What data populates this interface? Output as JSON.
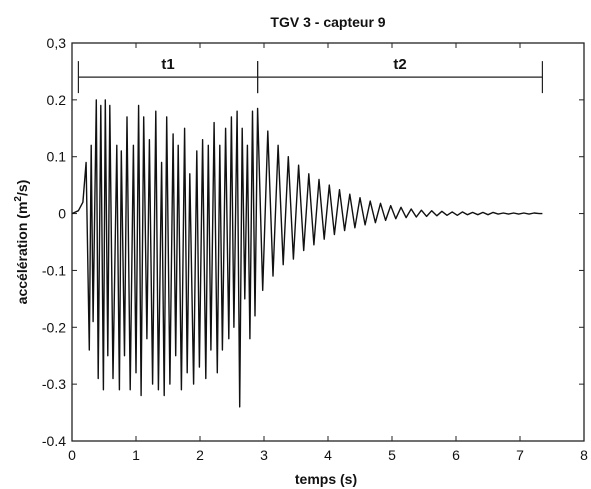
{
  "chart_data": {
    "type": "line",
    "title": "TGV 3 - capteur 9",
    "xlabel": "temps (s)",
    "ylabel_main": "accélération (m",
    "ylabel_sup": "2",
    "ylabel_tail": "/s)",
    "xlim": [
      0,
      8
    ],
    "ylim": [
      -0.4,
      0.3
    ],
    "xticks": [
      0,
      1,
      2,
      3,
      4,
      5,
      6,
      7,
      8
    ],
    "xtick_labels": [
      "0",
      "1",
      "2",
      "3",
      "4",
      "5",
      "6",
      "7",
      "8"
    ],
    "yticks": [
      0.3,
      0.2,
      0.1,
      0,
      -0.1,
      -0.2,
      -0.3,
      -0.4
    ],
    "ytick_labels": [
      "0,3",
      "0.2",
      "0.1",
      "0",
      "-0.1",
      "-0.2",
      "-0.3",
      "-0.4"
    ],
    "grid": false,
    "series": [
      {
        "color": "#111111",
        "x": [
          0,
          0.1,
          0.17,
          0.22,
          0.27,
          0.3,
          0.33,
          0.38,
          0.41,
          0.45,
          0.49,
          0.52,
          0.56,
          0.59,
          0.64,
          0.7,
          0.74,
          0.77,
          0.82,
          0.86,
          0.91,
          0.96,
          1.0,
          1.04,
          1.08,
          1.12,
          1.17,
          1.21,
          1.26,
          1.31,
          1.35,
          1.4,
          1.44,
          1.48,
          1.53,
          1.58,
          1.62,
          1.66,
          1.71,
          1.76,
          1.8,
          1.84,
          1.9,
          1.95,
          1.99,
          2.04,
          2.09,
          2.13,
          2.17,
          2.22,
          2.27,
          2.31,
          2.35,
          2.4,
          2.45,
          2.49,
          2.53,
          2.58,
          2.62,
          2.66,
          2.7,
          2.74,
          2.78,
          2.82,
          2.86,
          2.9,
          2.98,
          3.06,
          3.14,
          3.22,
          3.3,
          3.38,
          3.46,
          3.54,
          3.62,
          3.7,
          3.78,
          3.86,
          3.94,
          4.02,
          4.1,
          4.18,
          4.26,
          4.34,
          4.42,
          4.5,
          4.58,
          4.66,
          4.74,
          4.82,
          4.9,
          4.98,
          5.06,
          5.14,
          5.22,
          5.3,
          5.38,
          5.46,
          5.54,
          5.62,
          5.7,
          5.78,
          5.86,
          5.94,
          6.02,
          6.1,
          6.18,
          6.26,
          6.34,
          6.42,
          6.5,
          6.58,
          6.66,
          6.74,
          6.82,
          6.9,
          6.98,
          7.06,
          7.14,
          7.22,
          7.3,
          7.35
        ],
        "y": [
          0,
          0.005,
          0.02,
          0.09,
          -0.24,
          0.12,
          -0.19,
          0.2,
          -0.29,
          0.19,
          -0.31,
          0.2,
          -0.25,
          0.19,
          -0.29,
          0.12,
          -0.31,
          0.11,
          -0.25,
          0.17,
          -0.31,
          0.12,
          -0.28,
          0.19,
          -0.32,
          0.17,
          -0.22,
          0.13,
          -0.3,
          0.18,
          -0.31,
          0.09,
          -0.32,
          0.17,
          -0.3,
          0.14,
          -0.25,
          0.12,
          -0.31,
          0.15,
          -0.28,
          0.07,
          -0.3,
          0.11,
          -0.27,
          0.13,
          -0.29,
          0.12,
          -0.24,
          0.16,
          -0.28,
          0.12,
          -0.24,
          0.15,
          -0.22,
          0.17,
          -0.2,
          0.18,
          -0.34,
          0.15,
          -0.15,
          0.12,
          -0.22,
          0.18,
          -0.18,
          0.185,
          -0.135,
          0.145,
          -0.11,
          0.12,
          -0.09,
          0.1,
          -0.08,
          0.085,
          -0.065,
          0.07,
          -0.055,
          0.06,
          -0.045,
          0.05,
          -0.037,
          0.042,
          -0.03,
          0.034,
          -0.025,
          0.028,
          -0.02,
          0.022,
          -0.016,
          0.018,
          -0.012,
          0.014,
          -0.009,
          0.011,
          -0.007,
          0.008,
          -0.006,
          0.006,
          -0.005,
          0.005,
          -0.004,
          0.004,
          -0.003,
          0.003,
          -0.003,
          0.003,
          -0.002,
          0.002,
          -0.002,
          0.002,
          -0.002,
          0.002,
          -0.001,
          0.001,
          -0.001,
          0.001,
          -0.001,
          0.001,
          -0.001,
          0.001,
          0,
          0
        ]
      }
    ],
    "annotations": [
      {
        "label": "t1",
        "x_start": 0.1,
        "x_end": 2.9,
        "y": 0.24
      },
      {
        "label": "t2",
        "x_start": 2.9,
        "x_end": 7.35,
        "y": 0.24
      }
    ]
  }
}
